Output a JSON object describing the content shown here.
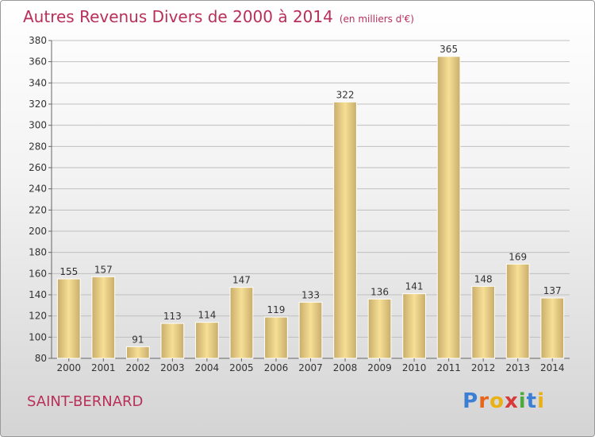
{
  "title": "Autres Revenus Divers de 2000 à 2014",
  "title_unit": "(en milliers d'€)",
  "place": "SAINT-BERNARD",
  "logo": {
    "text": "Proxiti",
    "letters": [
      "P",
      "r",
      "o",
      "x",
      "i",
      "t",
      "i"
    ],
    "colors": [
      "#3b7fd4",
      "#e8661c",
      "#e9b114",
      "#d83a3a",
      "#4aaa3d",
      "#3b7fd4",
      "#e9b114"
    ]
  },
  "colors": {
    "title": "#b8305a",
    "bar_light": "#f7df96",
    "bar_dark": "#c8ad6a",
    "grid": "#bfbfbf",
    "axis": "#666666"
  },
  "chart_data": {
    "type": "bar",
    "categories": [
      "2000",
      "2001",
      "2002",
      "2003",
      "2004",
      "2005",
      "2006",
      "2007",
      "2008",
      "2009",
      "2010",
      "2011",
      "2012",
      "2013",
      "2014"
    ],
    "values": [
      155,
      157,
      91,
      113,
      114,
      147,
      119,
      133,
      322,
      136,
      141,
      365,
      148,
      169,
      137
    ],
    "ylim": [
      80,
      380
    ],
    "yticks": [
      80,
      100,
      120,
      140,
      160,
      180,
      200,
      220,
      240,
      260,
      280,
      300,
      320,
      340,
      360,
      380
    ],
    "grid": true,
    "title": "Autres Revenus Divers de 2000 à 2014",
    "xlabel": "",
    "ylabel": ""
  }
}
